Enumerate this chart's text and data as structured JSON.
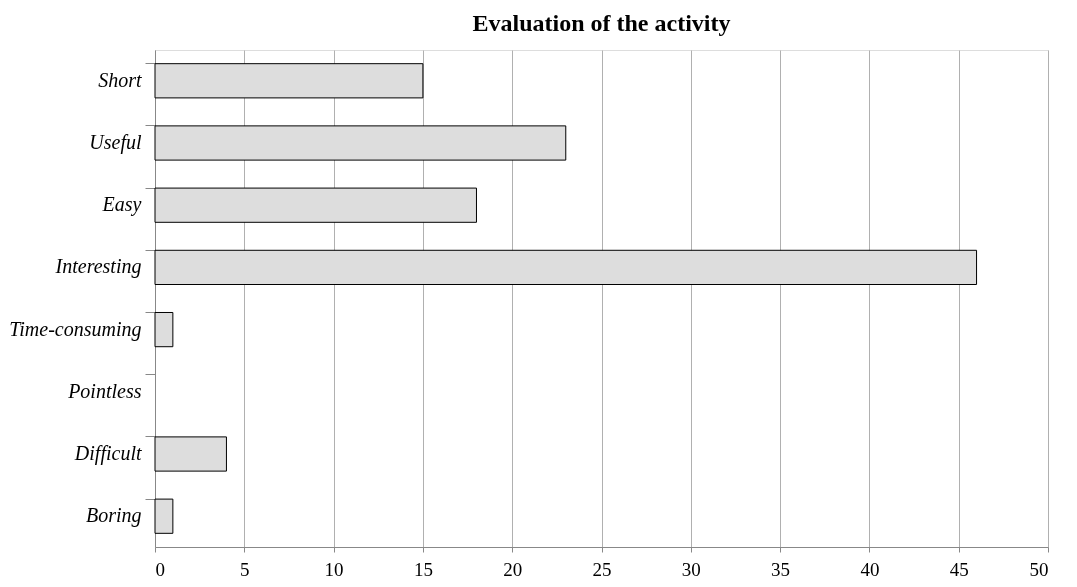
{
  "chart_data": {
    "type": "bar",
    "orientation": "horizontal",
    "title": "Evaluation of the activity",
    "categories": [
      "Short",
      "Useful",
      "Easy",
      "Interesting",
      "Time-consuming",
      "Pointless",
      "Difficult",
      "Boring"
    ],
    "values": [
      15,
      23,
      18,
      46,
      1,
      0,
      4,
      1
    ],
    "color": "#dddddd",
    "xlim": [
      0,
      50
    ],
    "xticks": [
      0,
      5,
      10,
      15,
      20,
      25,
      30,
      35,
      40,
      45,
      50
    ],
    "grid": "x"
  }
}
